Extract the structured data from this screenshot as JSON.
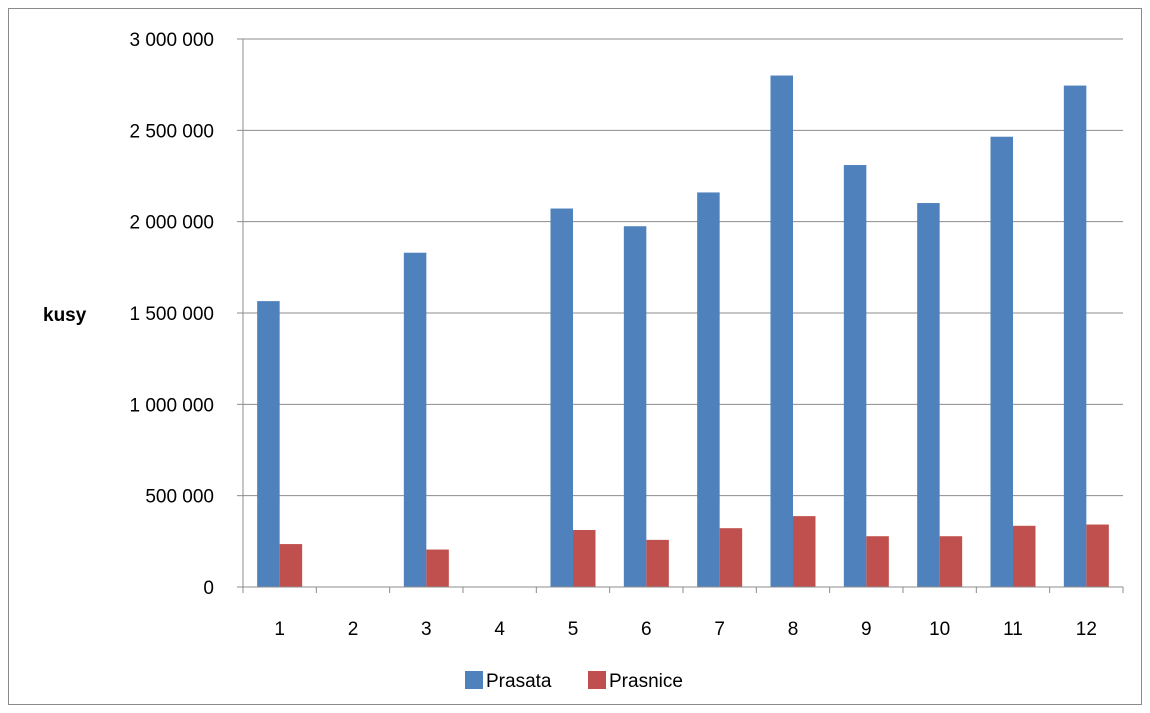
{
  "chart_data": {
    "type": "bar",
    "categories": [
      "1",
      "2",
      "3",
      "4",
      "5",
      "6",
      "7",
      "8",
      "9",
      "10",
      "11",
      "12"
    ],
    "series": [
      {
        "name": "Prasata",
        "color": "#4F81BD",
        "values": [
          1565000,
          0,
          1830000,
          0,
          2072000,
          1975000,
          2160000,
          2800000,
          2310000,
          2102000,
          2465000,
          2745000
        ]
      },
      {
        "name": "Prasnice",
        "color": "#C0504D",
        "values": [
          235000,
          0,
          205000,
          0,
          312000,
          258000,
          322000,
          388000,
          278000,
          278000,
          335000,
          342000
        ]
      }
    ],
    "ylabel": "kusy",
    "xlabel": "",
    "ylim": [
      0,
      3000000
    ],
    "yticks": [
      0,
      500000,
      1000000,
      1500000,
      2000000,
      2500000,
      3000000
    ],
    "ytick_labels": [
      "0",
      "500 000",
      "1 000 000",
      "1 500 000",
      "2 000 000",
      "2 500 000",
      "3 000 000"
    ],
    "grid": true,
    "legend_position": "bottom"
  }
}
